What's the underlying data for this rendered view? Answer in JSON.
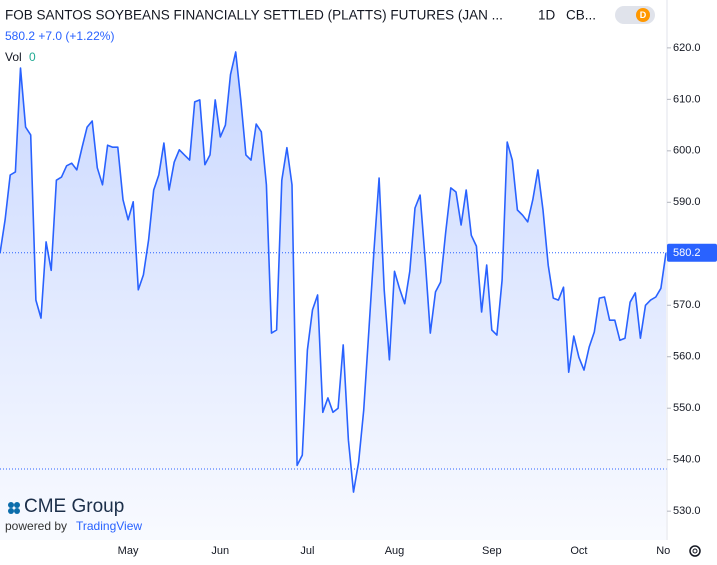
{
  "header": {
    "title": "FOB SANTOS SOYBEANS FINANCIALLY SETTLED (PLATTS) FUTURES (JAN ...",
    "interval": "1D",
    "exchange": "CB...",
    "toggle": "D",
    "last": "580.2",
    "change": "+7.0",
    "change_pct": "(+1.22%)",
    "volume_label": "Vol",
    "volume_value": "0"
  },
  "branding": {
    "logo": "CME Group",
    "powered_by": "powered by",
    "provider": "TradingView"
  },
  "chart_data": {
    "type": "area",
    "color": "#2962ff",
    "categories": [
      null,
      null,
      null,
      null,
      null,
      null,
      null,
      null,
      null,
      null,
      null,
      null,
      null,
      null,
      null,
      null,
      null,
      null,
      null,
      null,
      null,
      null,
      null,
      null,
      null,
      "May",
      null,
      null,
      null,
      null,
      null,
      null,
      null,
      null,
      null,
      null,
      null,
      null,
      null,
      null,
      null,
      null,
      null,
      "Jun",
      null,
      null,
      null,
      null,
      null,
      null,
      null,
      null,
      null,
      null,
      null,
      null,
      null,
      null,
      null,
      null,
      "Jul",
      null,
      null,
      null,
      null,
      null,
      null,
      null,
      null,
      null,
      null,
      null,
      null,
      null,
      null,
      null,
      null,
      "Aug",
      null,
      null,
      null,
      null,
      null,
      null,
      null,
      null,
      null,
      null,
      null,
      null,
      null,
      null,
      null,
      null,
      null,
      null,
      "Sep",
      null,
      null,
      null,
      null,
      null,
      null,
      null,
      null,
      null,
      null,
      null,
      null,
      null,
      null,
      null,
      null,
      "Oct",
      null,
      null,
      null,
      null,
      null,
      null,
      null,
      null,
      null,
      null,
      null,
      null,
      null,
      null,
      null,
      null,
      "Nov"
    ],
    "values": [
      580.1,
      586.6,
      595.3,
      595.9,
      616.1,
      604.6,
      603.1,
      571.0,
      567.5,
      582.3,
      576.8,
      594.3,
      594.9,
      597.1,
      597.6,
      596.3,
      600.6,
      604.6,
      605.8,
      596.7,
      593.4,
      601.1,
      600.7,
      600.7,
      590.5,
      586.6,
      590.1,
      573.0,
      575.9,
      582.7,
      592.4,
      595.3,
      601.5,
      592.4,
      597.8,
      600.2,
      599.2,
      598.2,
      609.5,
      609.9,
      597.3,
      599.2,
      609.9,
      602.7,
      605.0,
      614.8,
      619.2,
      609.9,
      599.2,
      598.2,
      605.2,
      603.7,
      593.4,
      564.6,
      565.2,
      594.3,
      600.6,
      593.4,
      538.9,
      540.9,
      561.3,
      569.1,
      572.0,
      549.2,
      552.0,
      549.2,
      550.0,
      562.3,
      543.8,
      533.7,
      539.5,
      549.6,
      565.2,
      580.7,
      594.7,
      573.0,
      559.4,
      576.6,
      573.2,
      570.3,
      576.6,
      588.9,
      591.4,
      578.8,
      564.6,
      572.6,
      574.5,
      584.2,
      592.8,
      592.0,
      585.6,
      592.4,
      583.6,
      581.5,
      568.7,
      577.8,
      565.2,
      564.2,
      574.9,
      601.7,
      598.2,
      588.5,
      587.5,
      586.2,
      590.5,
      596.3,
      588.5,
      577.8,
      571.4,
      571.0,
      573.5,
      557.0,
      564.0,
      559.9,
      557.4,
      561.9,
      564.8,
      571.4,
      571.6,
      567.1,
      567.1,
      563.2,
      563.6,
      570.6,
      572.4,
      563.6,
      570.0,
      571.0,
      571.6,
      573.3,
      580.2
    ],
    "ylim": [
      524.4,
      629.3
    ],
    "yticks": [
      {
        "value": 530,
        "label": "530.0"
      },
      {
        "value": 540,
        "label": "540.0"
      },
      {
        "value": 550,
        "label": "550.0"
      },
      {
        "value": 560,
        "label": "560.0"
      },
      {
        "value": 570,
        "label": "570.0"
      },
      {
        "value": 580,
        "label": "580.0"
      },
      {
        "value": 590,
        "label": "590.0"
      },
      {
        "value": 600,
        "label": "600.0"
      },
      {
        "value": 610,
        "label": "610.0"
      },
      {
        "value": 620,
        "label": "620.0"
      }
    ],
    "ylines": [
      538.2
    ]
  }
}
